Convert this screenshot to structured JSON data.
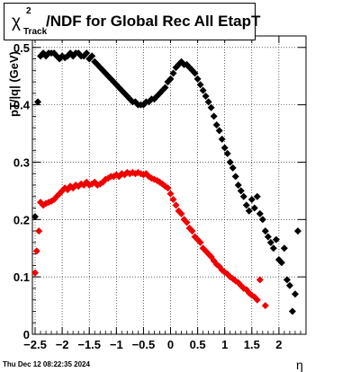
{
  "chart_data": {
    "type": "scatter",
    "title_chi": "χ",
    "title_sup": "2",
    "title_sub": "Track",
    "title_rest": "/NDF for Global Rec All EtapT",
    "xlabel": "η",
    "ylabel": "pT/|q| (GeV)",
    "xlim": [
      -2.55,
      2.5
    ],
    "ylim": [
      0,
      0.52
    ],
    "xticks": [
      -2.5,
      -2,
      -1.5,
      -1,
      -0.5,
      0,
      0.5,
      1,
      1.5,
      2
    ],
    "xtick_labels": [
      "−2.5",
      "−2",
      "−1.5",
      "−1",
      "−0.5",
      "0",
      "0.5",
      "1",
      "1.5",
      "2"
    ],
    "yticks": [
      0,
      0.1,
      0.2,
      0.3,
      0.4,
      0.5
    ],
    "ytick_labels": [
      "0",
      "0.1",
      "0.2",
      "0.3",
      "0.4",
      "0.5"
    ],
    "grid": true,
    "series": [
      {
        "color": "#000000",
        "points": [
          [
            -2.5,
            0.205
          ],
          [
            -2.45,
            0.405
          ],
          [
            -2.4,
            0.485
          ],
          [
            -2.35,
            0.49
          ],
          [
            -2.3,
            0.485
          ],
          [
            -2.25,
            0.49
          ],
          [
            -2.2,
            0.49
          ],
          [
            -2.15,
            0.49
          ],
          [
            -2.1,
            0.485
          ],
          [
            -2.05,
            0.48
          ],
          [
            -2.0,
            0.485
          ],
          [
            -1.95,
            0.482
          ],
          [
            -1.9,
            0.485
          ],
          [
            -1.85,
            0.49
          ],
          [
            -1.8,
            0.485
          ],
          [
            -1.75,
            0.49
          ],
          [
            -1.7,
            0.49
          ],
          [
            -1.65,
            0.485
          ],
          [
            -1.6,
            0.485
          ],
          [
            -1.55,
            0.49
          ],
          [
            -1.5,
            0.48
          ],
          [
            -1.45,
            0.485
          ],
          [
            -1.4,
            0.475
          ],
          [
            -1.35,
            0.47
          ],
          [
            -1.3,
            0.465
          ],
          [
            -1.25,
            0.46
          ],
          [
            -1.2,
            0.455
          ],
          [
            -1.15,
            0.45
          ],
          [
            -1.1,
            0.445
          ],
          [
            -1.05,
            0.44
          ],
          [
            -1.0,
            0.435
          ],
          [
            -0.95,
            0.43
          ],
          [
            -0.9,
            0.425
          ],
          [
            -0.85,
            0.42
          ],
          [
            -0.8,
            0.415
          ],
          [
            -0.75,
            0.41
          ],
          [
            -0.7,
            0.405
          ],
          [
            -0.65,
            0.405
          ],
          [
            -0.6,
            0.4
          ],
          [
            -0.55,
            0.4
          ],
          [
            -0.5,
            0.4
          ],
          [
            -0.45,
            0.405
          ],
          [
            -0.4,
            0.405
          ],
          [
            -0.35,
            0.41
          ],
          [
            -0.3,
            0.41
          ],
          [
            -0.25,
            0.415
          ],
          [
            -0.2,
            0.42
          ],
          [
            -0.15,
            0.425
          ],
          [
            -0.1,
            0.43
          ],
          [
            -0.05,
            0.44
          ],
          [
            0.0,
            0.445
          ],
          [
            0.05,
            0.455
          ],
          [
            0.1,
            0.465
          ],
          [
            0.15,
            0.47
          ],
          [
            0.2,
            0.475
          ],
          [
            0.25,
            0.47
          ],
          [
            0.3,
            0.47
          ],
          [
            0.35,
            0.465
          ],
          [
            0.4,
            0.46
          ],
          [
            0.45,
            0.455
          ],
          [
            0.5,
            0.445
          ],
          [
            0.55,
            0.435
          ],
          [
            0.6,
            0.425
          ],
          [
            0.65,
            0.415
          ],
          [
            0.7,
            0.405
          ],
          [
            0.75,
            0.395
          ],
          [
            0.8,
            0.38
          ],
          [
            0.85,
            0.365
          ],
          [
            0.9,
            0.355
          ],
          [
            0.95,
            0.34
          ],
          [
            1.0,
            0.325
          ],
          [
            1.05,
            0.315
          ],
          [
            1.1,
            0.3
          ],
          [
            1.15,
            0.29
          ],
          [
            1.2,
            0.275
          ],
          [
            1.25,
            0.26
          ],
          [
            1.3,
            0.25
          ],
          [
            1.35,
            0.24
          ],
          [
            1.4,
            0.225
          ],
          [
            1.45,
            0.215
          ],
          [
            1.5,
            0.235
          ],
          [
            1.55,
            0.22
          ],
          [
            1.6,
            0.24
          ],
          [
            1.65,
            0.21
          ],
          [
            1.7,
            0.2
          ],
          [
            1.75,
            0.18
          ],
          [
            1.8,
            0.17
          ],
          [
            1.85,
            0.16
          ],
          [
            1.9,
            0.15
          ],
          [
            1.95,
            0.165
          ],
          [
            2.0,
            0.13
          ],
          [
            2.05,
            0.125
          ],
          [
            2.1,
            0.15
          ],
          [
            2.15,
            0.095
          ],
          [
            2.2,
            0.085
          ],
          [
            2.25,
            0.04
          ],
          [
            2.3,
            0.07
          ],
          [
            2.35,
            0.18
          ]
        ]
      },
      {
        "color": "#ee0000",
        "points": [
          [
            -2.5,
            0.107
          ],
          [
            -2.47,
            0.145
          ],
          [
            -2.43,
            0.18
          ],
          [
            -2.4,
            0.23
          ],
          [
            -2.35,
            0.225
          ],
          [
            -2.3,
            0.228
          ],
          [
            -2.25,
            0.23
          ],
          [
            -2.2,
            0.232
          ],
          [
            -2.15,
            0.235
          ],
          [
            -2.1,
            0.24
          ],
          [
            -2.05,
            0.245
          ],
          [
            -2.0,
            0.25
          ],
          [
            -1.95,
            0.255
          ],
          [
            -1.9,
            0.252
          ],
          [
            -1.85,
            0.258
          ],
          [
            -1.8,
            0.255
          ],
          [
            -1.75,
            0.26
          ],
          [
            -1.7,
            0.258
          ],
          [
            -1.65,
            0.262
          ],
          [
            -1.6,
            0.26
          ],
          [
            -1.55,
            0.265
          ],
          [
            -1.5,
            0.26
          ],
          [
            -1.45,
            0.262
          ],
          [
            -1.4,
            0.265
          ],
          [
            -1.35,
            0.26
          ],
          [
            -1.3,
            0.262
          ],
          [
            -1.25,
            0.265
          ],
          [
            -1.2,
            0.27
          ],
          [
            -1.15,
            0.272
          ],
          [
            -1.1,
            0.275
          ],
          [
            -1.05,
            0.275
          ],
          [
            -1.0,
            0.278
          ],
          [
            -0.95,
            0.275
          ],
          [
            -0.9,
            0.28
          ],
          [
            -0.85,
            0.278
          ],
          [
            -0.8,
            0.282
          ],
          [
            -0.75,
            0.28
          ],
          [
            -0.7,
            0.282
          ],
          [
            -0.65,
            0.28
          ],
          [
            -0.6,
            0.282
          ],
          [
            -0.55,
            0.28
          ],
          [
            -0.5,
            0.278
          ],
          [
            -0.45,
            0.28
          ],
          [
            -0.4,
            0.275
          ],
          [
            -0.35,
            0.272
          ],
          [
            -0.3,
            0.27
          ],
          [
            -0.25,
            0.268
          ],
          [
            -0.2,
            0.265
          ],
          [
            -0.15,
            0.262
          ],
          [
            -0.1,
            0.258
          ],
          [
            -0.05,
            0.255
          ],
          [
            0.0,
            0.245
          ],
          [
            0.05,
            0.235
          ],
          [
            0.1,
            0.225
          ],
          [
            0.15,
            0.215
          ],
          [
            0.2,
            0.21
          ],
          [
            0.25,
            0.2
          ],
          [
            0.3,
            0.195
          ],
          [
            0.35,
            0.185
          ],
          [
            0.4,
            0.18
          ],
          [
            0.45,
            0.17
          ],
          [
            0.5,
            0.165
          ],
          [
            0.55,
            0.16
          ],
          [
            0.6,
            0.15
          ],
          [
            0.65,
            0.145
          ],
          [
            0.7,
            0.14
          ],
          [
            0.75,
            0.135
          ],
          [
            0.8,
            0.128
          ],
          [
            0.85,
            0.122
          ],
          [
            0.9,
            0.118
          ],
          [
            0.95,
            0.112
          ],
          [
            1.0,
            0.108
          ],
          [
            1.05,
            0.105
          ],
          [
            1.1,
            0.1
          ],
          [
            1.15,
            0.097
          ],
          [
            1.2,
            0.093
          ],
          [
            1.25,
            0.09
          ],
          [
            1.3,
            0.085
          ],
          [
            1.35,
            0.08
          ],
          [
            1.4,
            0.078
          ],
          [
            1.45,
            0.072
          ],
          [
            1.5,
            0.068
          ],
          [
            1.55,
            0.065
          ],
          [
            1.6,
            0.06
          ],
          [
            1.65,
            0.095
          ],
          [
            1.75,
            0.05
          ]
        ]
      }
    ]
  },
  "timestamp": "Thu Dec 12 08:22:35 2024"
}
